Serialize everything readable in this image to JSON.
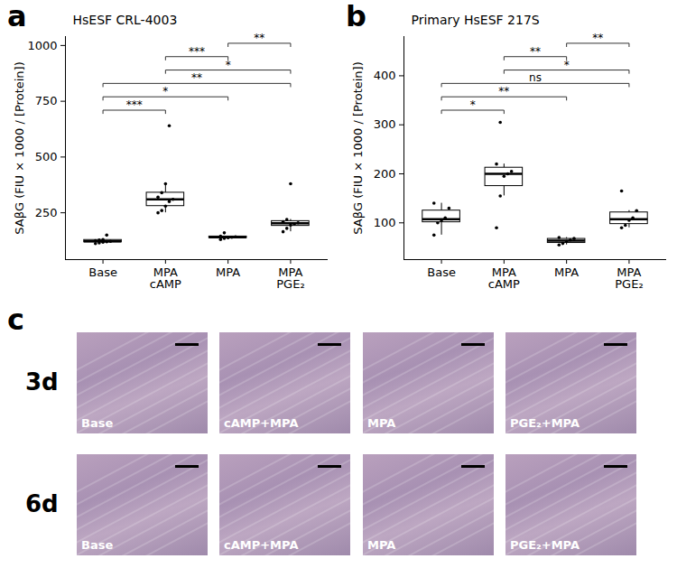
{
  "chart_data": [
    {
      "type": "box",
      "panel": "a",
      "title": "HsESF CRL-4003",
      "y_label": "SAβG (FIU × 1000 / [Protein])",
      "categories": [
        "Base",
        "MPA\ncAMP",
        "MPA",
        "MPA\nPGE₂"
      ],
      "values": [
        [
          112,
          115,
          118,
          120,
          122,
          125,
          128,
          130,
          150
        ],
        [
          250,
          260,
          280,
          300,
          310,
          320,
          340,
          380,
          640
        ],
        [
          130,
          135,
          138,
          140,
          142,
          145,
          160
        ],
        [
          165,
          180,
          195,
          200,
          205,
          210,
          220,
          380
        ]
      ],
      "color": "#000000",
      "ylim": [
        40,
        1040
      ],
      "yticks": [
        250,
        500,
        750,
        1000
      ],
      "grid": false,
      "comparisons": [
        {
          "groups": [
            2,
            3
          ],
          "label": "**"
        },
        {
          "groups": [
            1,
            2
          ],
          "label": "***"
        },
        {
          "groups": [
            1,
            3
          ],
          "label": "*"
        },
        {
          "groups": [
            0,
            3
          ],
          "label": "**"
        },
        {
          "groups": [
            0,
            2
          ],
          "label": "*"
        },
        {
          "groups": [
            0,
            1
          ],
          "label": "***"
        }
      ]
    },
    {
      "type": "box",
      "panel": "b",
      "title": "Primary HsESF 217S",
      "y_label": "SAβG (FIU × 1000 / [Protein])",
      "categories": [
        "Base",
        "MPA\ncAMP",
        "MPA",
        "MPA\nPGE₂"
      ],
      "values": [
        [
          75,
          100,
          105,
          110,
          130,
          140
        ],
        [
          90,
          155,
          195,
          200,
          205,
          220,
          305
        ],
        [
          55,
          58,
          62,
          65,
          68,
          70
        ],
        [
          90,
          95,
          105,
          110,
          125,
          165
        ]
      ],
      "color": "#000000",
      "ylim": [
        25,
        480
      ],
      "yticks": [
        100,
        200,
        300,
        400
      ],
      "grid": false,
      "comparisons": [
        {
          "groups": [
            2,
            3
          ],
          "label": "**"
        },
        {
          "groups": [
            1,
            2
          ],
          "label": "**"
        },
        {
          "groups": [
            1,
            3
          ],
          "label": "*"
        },
        {
          "groups": [
            0,
            3
          ],
          "label": "ns"
        },
        {
          "groups": [
            0,
            2
          ],
          "label": "**"
        },
        {
          "groups": [
            0,
            1
          ],
          "label": "*"
        }
      ]
    }
  ],
  "image_grid": {
    "panel": "c",
    "rows": [
      "3d",
      "6d"
    ],
    "columns": [
      "Base",
      "cAMP+MPA",
      "MPA",
      "PGE₂+MPA"
    ]
  }
}
